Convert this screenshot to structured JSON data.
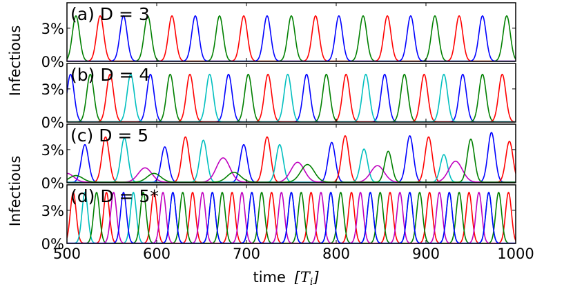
{
  "chart_data": {
    "type": "line",
    "xlabel": "time",
    "xlabel_unit": "[T",
    "xlabel_unit_sub": "i",
    "xlabel_unit_close": "]",
    "ylabel_top": "Infectious",
    "ylabel_bottom": "Infectious",
    "xlim": [
      500,
      1000
    ],
    "ylim": [
      0,
      5.3
    ],
    "x_ticks": [
      500,
      600,
      700,
      800,
      900,
      1000
    ],
    "x_tick_labels": [
      "500",
      "600",
      "700",
      "800",
      "900",
      "1000"
    ],
    "y_ticks": [
      0,
      3
    ],
    "y_tick_labels": [
      "0%",
      "3%"
    ],
    "grid": false,
    "panels": [
      {
        "label": "(a) D = 3",
        "series": [
          {
            "color": "#008000",
            "peak_value": 4.1,
            "peaks": [
              510,
              590,
              670,
              750,
              830,
              910,
              990
            ]
          },
          {
            "color": "#ff0000",
            "peak_value": 4.1,
            "peaks": [
              537,
              617,
              697,
              777,
              857,
              937
            ]
          },
          {
            "color": "#0000ff",
            "peak_value": 4.1,
            "peaks": [
              563,
              643,
              723,
              803,
              883,
              963
            ]
          }
        ]
      },
      {
        "label": "(b) D = 4",
        "series": [
          {
            "color": "#0000ff",
            "peak_value": 4.3,
            "peaks": [
              504,
              593,
              680,
              767,
              854,
              941
            ]
          },
          {
            "color": "#008000",
            "peak_value": 4.3,
            "peaks": [
              526,
              615,
              702,
              789,
              876,
              963
            ]
          },
          {
            "color": "#ff0000",
            "peak_value": 4.3,
            "peaks": [
              548,
              637,
              724,
              811,
              898,
              985
            ]
          },
          {
            "color": "#00bfbf",
            "peak_value": 4.3,
            "peaks": [
              571,
              659,
              746,
              833,
              920
            ]
          }
        ]
      },
      {
        "label": "(c) D = 5",
        "series": [
          {
            "color": "#0000ff",
            "peaks": [
              520,
              609,
              697,
              795,
              882,
              973
            ],
            "peak_values": [
              3.4,
              3.2,
              3.4,
              3.6,
              4.2,
              4.5
            ]
          },
          {
            "color": "#ff0000",
            "peaks": [
              543,
              632,
              723,
              810,
              903,
              993
            ],
            "peak_values": [
              4.1,
              4.1,
              4.1,
              4.2,
              4.1,
              3.7
            ]
          },
          {
            "color": "#00bfbf",
            "peaks": [
              564,
              652,
              737,
              831,
              920
            ],
            "peak_values": [
              4.0,
              3.8,
              3.4,
              3.0,
              2.5
            ]
          },
          {
            "color": "#bf00bf",
            "peaks": [
              500,
              587,
              674,
              757,
              846,
              933
            ],
            "peak_values": [
              0.8,
              1.3,
              2.2,
              1.8,
              1.5,
              1.9
            ]
          },
          {
            "color": "#008000",
            "peaks": [
              510,
              597,
              686,
              768,
              858,
              950
            ],
            "peak_values": [
              0.6,
              0.8,
              0.9,
              1.6,
              2.8,
              3.9
            ]
          }
        ]
      },
      {
        "label": "(d) D = 5*",
        "series": [
          {
            "color": "#ff0000",
            "peak_value": 4.6,
            "peaks": [
              507,
              544,
              597,
              640,
              684,
              728,
              772,
              817,
              860,
              904,
              948,
              992
            ]
          },
          {
            "color": "#00bfbf",
            "peak_value": 4.6,
            "peaks": [
              520,
              574,
              618,
              662,
              706,
              750,
              794,
              838,
              882,
              926,
              970
            ]
          },
          {
            "color": "#008000",
            "peak_value": 4.6,
            "peaks": [
              533,
              585,
              629,
              673,
              717,
              761,
              805,
              849,
              893,
              937,
              981
            ]
          },
          {
            "color": "#bf00bf",
            "peak_value": 4.6,
            "peaks": [
              552,
              607,
              651,
              695,
              739,
              783,
              827,
              871,
              915,
              959
            ]
          },
          {
            "color": "#0000ff",
            "peak_value": 4.6,
            "peaks": [
              563,
              618,
              662,
              706,
              750,
              794,
              838,
              882,
              926,
              970
            ]
          }
        ]
      }
    ]
  }
}
